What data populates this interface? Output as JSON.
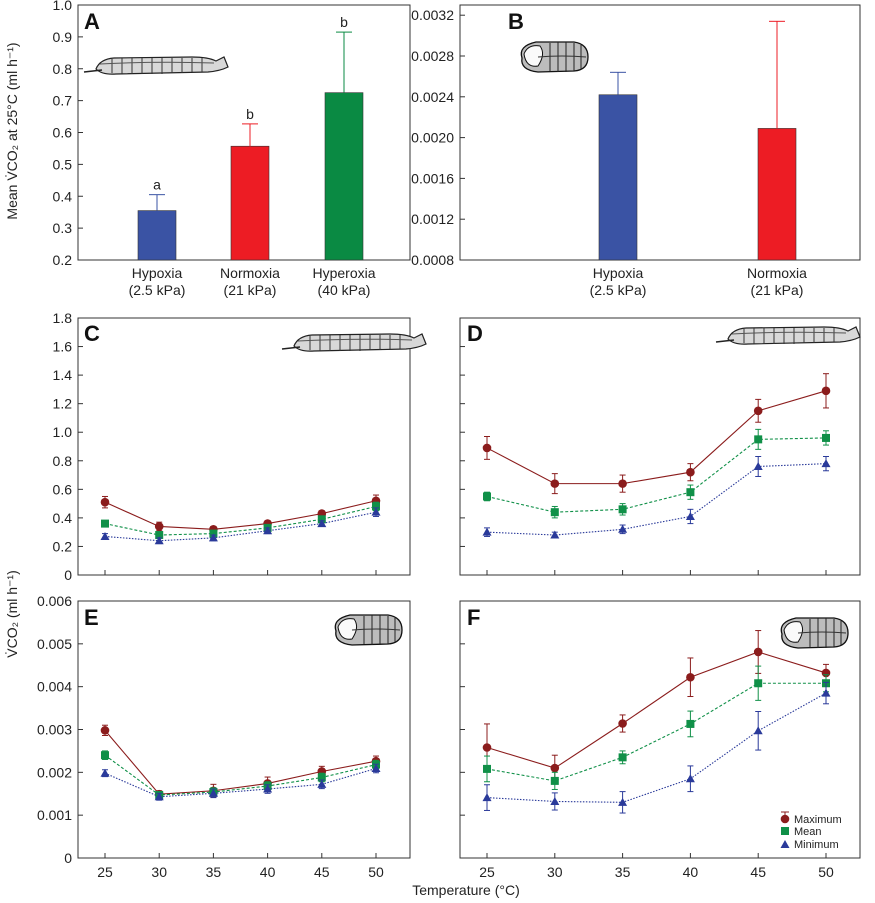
{
  "x_axis_label": "Temperature (°C)",
  "y_label_top": "Mean V̇CO₂ at 25°C (ml h⁻¹)",
  "y_label_bottom": "V̇CO₂ (ml h⁻¹)",
  "icons": {
    "larva": "larva-icon",
    "pupa": "pupa-icon"
  },
  "colors": {
    "hypoxia": "#3a53a4",
    "normoxia": "#ed1c24",
    "hyperoxia": "#0a8a43",
    "maximum": "#8b1c1c",
    "mean": "#109048",
    "minimum": "#2a3a9a"
  },
  "legend": [
    "Maximum",
    "Mean",
    "Minimum"
  ],
  "chart_data": [
    {
      "panel": "A",
      "type": "bar",
      "subject": "larva",
      "categories": [
        "Hypoxia",
        "Normoxia",
        "Hyperoxia"
      ],
      "category_sub": [
        "(2.5 kPa)",
        "(21 kPa)",
        "(40 kPa)"
      ],
      "values": [
        0.355,
        0.557,
        0.725
      ],
      "errors": [
        0.05,
        0.07,
        0.19
      ],
      "significance": [
        "a",
        "b",
        "b"
      ],
      "ylim": [
        0.2,
        1.0
      ],
      "yticks": [
        "0.2",
        "0.3",
        "0.4",
        "0.5",
        "0.6",
        "0.7",
        "0.8",
        "0.9",
        "1.0"
      ],
      "ylabel": "Mean V̇CO₂ at 25°C (ml h⁻¹)"
    },
    {
      "panel": "B",
      "type": "bar",
      "subject": "pupa",
      "categories": [
        "Hypoxia",
        "Normoxia"
      ],
      "category_sub": [
        "(2.5 kPa)",
        "(21 kPa)"
      ],
      "values": [
        0.00242,
        0.00209
      ],
      "errors": [
        0.00022,
        0.00105
      ],
      "ylim": [
        0.0008,
        0.0033
      ],
      "yticks": [
        "0.0008",
        "0.0012",
        "0.0016",
        "0.0020",
        "0.0024",
        "0.0028",
        "0.0032"
      ]
    },
    {
      "panel": "C",
      "type": "line",
      "subject": "larva",
      "x": [
        25,
        30,
        35,
        40,
        45,
        50
      ],
      "ylim": [
        0,
        1.8
      ],
      "yticks": [
        "0",
        "0.2",
        "0.4",
        "0.6",
        "0.8",
        "1.0",
        "1.2",
        "1.4",
        "1.6",
        "1.8"
      ],
      "series": [
        {
          "name": "Maximum",
          "values": [
            0.51,
            0.34,
            0.32,
            0.36,
            0.43,
            0.52
          ],
          "errors": [
            0.04,
            0.03,
            0.02,
            0.02,
            0.02,
            0.04
          ]
        },
        {
          "name": "Mean",
          "values": [
            0.36,
            0.28,
            0.29,
            0.33,
            0.39,
            0.48
          ],
          "errors": [
            0.02,
            0.02,
            0.02,
            0.02,
            0.02,
            0.03
          ]
        },
        {
          "name": "Minimum",
          "values": [
            0.27,
            0.24,
            0.26,
            0.31,
            0.36,
            0.44
          ],
          "errors": [
            0.02,
            0.02,
            0.02,
            0.02,
            0.02,
            0.03
          ]
        }
      ]
    },
    {
      "panel": "D",
      "type": "line",
      "subject": "larva",
      "x": [
        25,
        30,
        35,
        40,
        45,
        50
      ],
      "ylim": [
        0,
        1.8
      ],
      "series": [
        {
          "name": "Maximum",
          "values": [
            0.89,
            0.64,
            0.64,
            0.72,
            1.15,
            1.29
          ],
          "errors": [
            0.08,
            0.07,
            0.06,
            0.06,
            0.08,
            0.12
          ]
        },
        {
          "name": "Mean",
          "values": [
            0.55,
            0.44,
            0.46,
            0.58,
            0.95,
            0.96
          ],
          "errors": [
            0.03,
            0.04,
            0.04,
            0.05,
            0.07,
            0.05
          ]
        },
        {
          "name": "Minimum",
          "values": [
            0.3,
            0.28,
            0.32,
            0.41,
            0.76,
            0.78
          ],
          "errors": [
            0.03,
            0.02,
            0.03,
            0.05,
            0.07,
            0.05
          ]
        }
      ]
    },
    {
      "panel": "E",
      "type": "line",
      "subject": "pupa",
      "x": [
        25,
        30,
        35,
        40,
        45,
        50
      ],
      "ylim": [
        0,
        0.006
      ],
      "yticks": [
        "0",
        "0.001",
        "0.002",
        "0.003",
        "0.004",
        "0.005",
        "0.006"
      ],
      "series": [
        {
          "name": "Maximum",
          "values": [
            0.00298,
            0.00149,
            0.00157,
            0.00174,
            0.00202,
            0.00226
          ],
          "errors": [
            0.00012,
            8e-05,
            0.00015,
            0.00015,
            0.00012,
            0.00012
          ]
        },
        {
          "name": "Mean",
          "values": [
            0.0024,
            0.00147,
            0.00154,
            0.00168,
            0.00188,
            0.00218
          ],
          "errors": [
            0.0001,
            8e-05,
            0.0001,
            0.0001,
            0.0001,
            0.0001
          ]
        },
        {
          "name": "Minimum",
          "values": [
            0.00198,
            0.00143,
            0.00151,
            0.00161,
            0.00172,
            0.00209
          ],
          "errors": [
            8e-05,
            8e-05,
            0.0001,
            0.0001,
            0.0001,
            0.0001
          ]
        }
      ]
    },
    {
      "panel": "F",
      "type": "line",
      "subject": "pupa",
      "x": [
        25,
        30,
        35,
        40,
        45,
        50
      ],
      "xticks": [
        "25",
        "30",
        "35",
        "40",
        "45",
        "50"
      ],
      "ylim": [
        0,
        0.006
      ],
      "series": [
        {
          "name": "Maximum",
          "values": [
            0.00258,
            0.0021,
            0.00314,
            0.00422,
            0.00481,
            0.00432
          ],
          "errors": [
            0.00055,
            0.0003,
            0.0002,
            0.00045,
            0.0005,
            0.0002
          ]
        },
        {
          "name": "Mean",
          "values": [
            0.00208,
            0.0018,
            0.00235,
            0.00313,
            0.00408,
            0.00408
          ],
          "errors": [
            0.0003,
            0.0002,
            0.00015,
            0.0003,
            0.0004,
            0.0002
          ]
        },
        {
          "name": "Minimum",
          "values": [
            0.00141,
            0.00132,
            0.0013,
            0.00185,
            0.00297,
            0.00385
          ],
          "errors": [
            0.0003,
            0.0002,
            0.00025,
            0.0003,
            0.00045,
            0.00025
          ]
        }
      ]
    }
  ]
}
